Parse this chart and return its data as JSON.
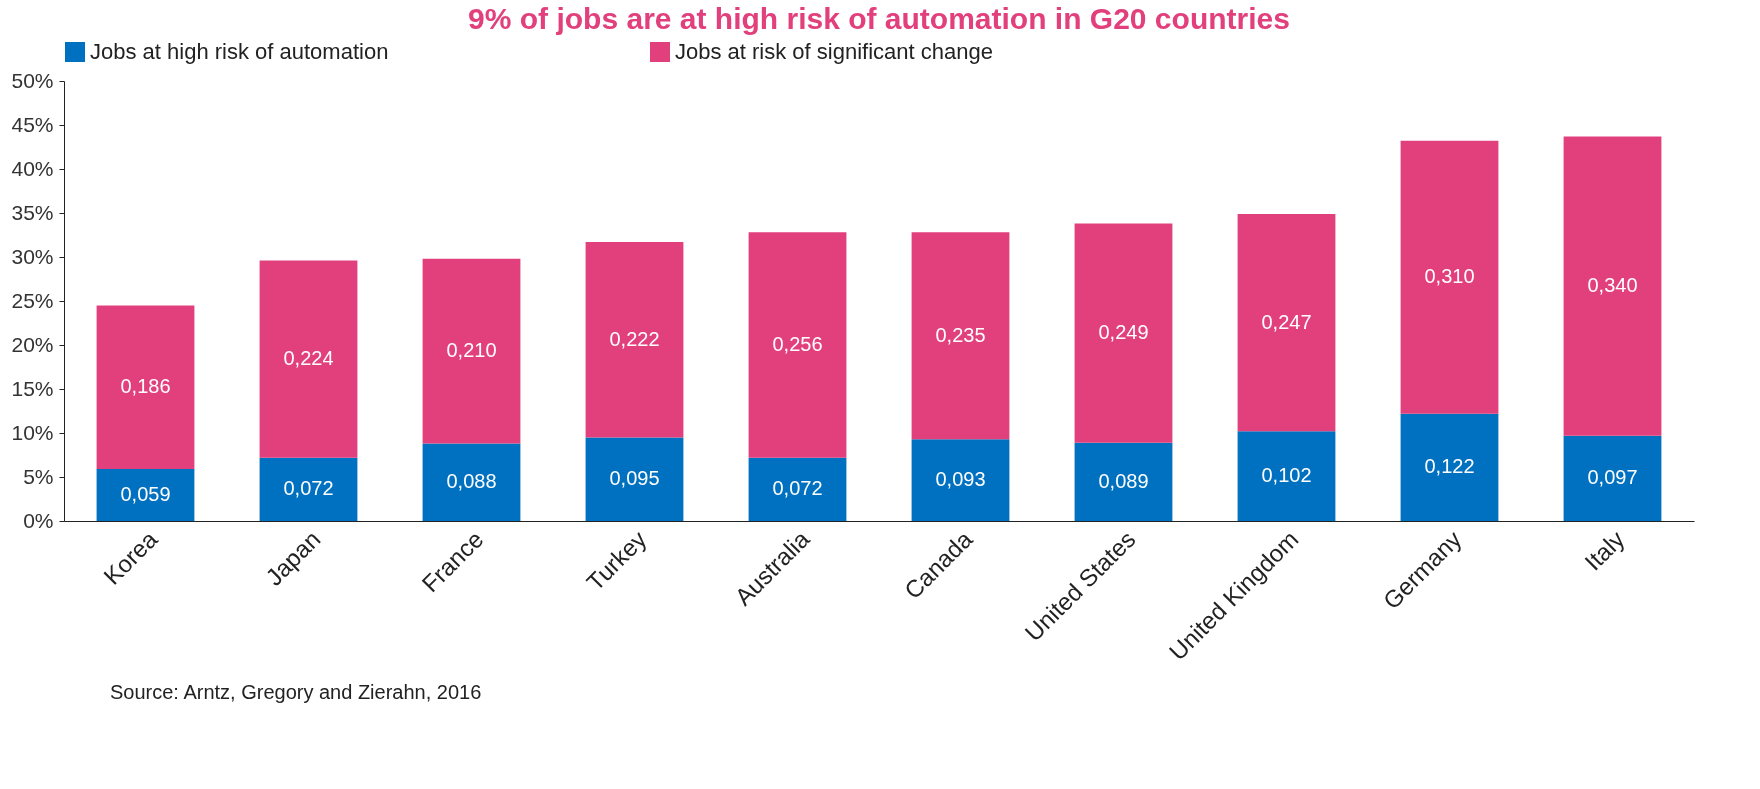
{
  "chart_data": {
    "type": "bar",
    "title": "9% of jobs are at high risk of automation in G20 countries",
    "categories": [
      "Korea",
      "Japan",
      "France",
      "Turkey",
      "Australia",
      "Canada",
      "United States",
      "United Kingdom",
      "Germany",
      "Italy"
    ],
    "stacked": true,
    "series": [
      {
        "name": "Jobs at high risk of automation",
        "color": "#0070c0",
        "values": [
          0.059,
          0.072,
          0.088,
          0.095,
          0.072,
          0.093,
          0.089,
          0.102,
          0.122,
          0.097
        ],
        "value_labels": [
          "0,059",
          "0,072",
          "0,088",
          "0,095",
          "0,072",
          "0,093",
          "0,089",
          "0,102",
          "0,122",
          "0,097"
        ]
      },
      {
        "name": "Jobs at risk of significant change",
        "color": "#e2407c",
        "values": [
          0.186,
          0.224,
          0.21,
          0.222,
          0.256,
          0.235,
          0.249,
          0.247,
          0.31,
          0.34
        ],
        "value_labels": [
          "0,186",
          "0,224",
          "0,210",
          "0,222",
          "0,256",
          "0,235",
          "0,249",
          "0,247",
          "0,310",
          "0,340"
        ]
      }
    ],
    "ylim": [
      0,
      0.5
    ],
    "yticks": [
      {
        "value": 0,
        "label": "0%"
      },
      {
        "value": 0.05,
        "label": "5%"
      },
      {
        "value": 0.1,
        "label": "10%"
      },
      {
        "value": 0.15,
        "label": "15%"
      },
      {
        "value": 0.2,
        "label": "20%"
      },
      {
        "value": 0.25,
        "label": "25%"
      },
      {
        "value": 0.3,
        "label": "30%"
      },
      {
        "value": 0.35,
        "label": "35%"
      },
      {
        "value": 0.4,
        "label": "40%"
      },
      {
        "value": 0.45,
        "label": "45%"
      },
      {
        "value": 0.5,
        "label": "50%"
      }
    ],
    "legend": "top",
    "grid": false,
    "annotations": [
      "Source: Arntz, Gregory and Zierahn, 2016"
    ]
  }
}
